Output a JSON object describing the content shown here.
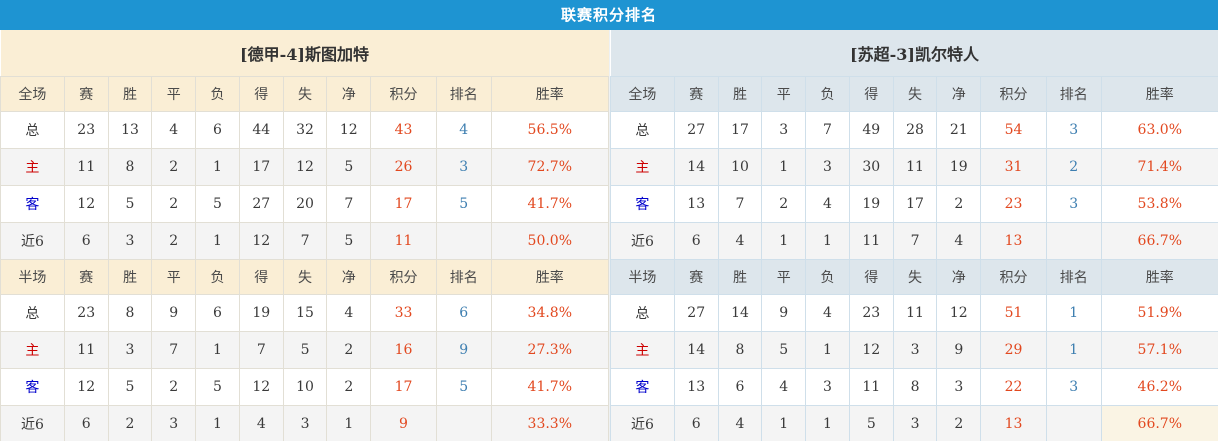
{
  "title": "联赛积分排名",
  "stat_columns": [
    "赛",
    "胜",
    "平",
    "负",
    "得",
    "失",
    "净",
    "积分",
    "排名",
    "胜率"
  ],
  "colors": {
    "header_bar": "#1e94d2",
    "left_theme": "#faeed5",
    "right_theme": "#dde6ec",
    "alt_row": "#f4f4f4",
    "text": "#3a3a3a",
    "points_text": "#e2481f",
    "rate_text": "#e2481f",
    "rank_text": "#3d7eb0",
    "home_label": "#cc0000",
    "away_label": "#0000cc",
    "highlight_cell": "#faf4e4",
    "bottom_line": "#2494d2"
  },
  "teams": [
    {
      "name": "[德甲-4]斯图加特",
      "sections": [
        {
          "key_label": "全场",
          "rows": [
            {
              "label": "总",
              "values": [
                "23",
                "13",
                "4",
                "6",
                "44",
                "32",
                "12"
              ],
              "points": "43",
              "rank": "4",
              "rate": "56.5%"
            },
            {
              "label": "主",
              "values": [
                "11",
                "8",
                "2",
                "1",
                "17",
                "12",
                "5"
              ],
              "points": "26",
              "rank": "3",
              "rate": "72.7%"
            },
            {
              "label": "客",
              "values": [
                "12",
                "5",
                "2",
                "5",
                "27",
                "20",
                "7"
              ],
              "points": "17",
              "rank": "5",
              "rate": "41.7%"
            },
            {
              "label": "近6",
              "values": [
                "6",
                "3",
                "2",
                "1",
                "12",
                "7",
                "5"
              ],
              "points": "11",
              "rank": "",
              "rate": "50.0%"
            }
          ]
        },
        {
          "key_label": "半场",
          "rows": [
            {
              "label": "总",
              "values": [
                "23",
                "8",
                "9",
                "6",
                "19",
                "15",
                "4"
              ],
              "points": "33",
              "rank": "6",
              "rate": "34.8%"
            },
            {
              "label": "主",
              "values": [
                "11",
                "3",
                "7",
                "1",
                "7",
                "5",
                "2"
              ],
              "points": "16",
              "rank": "9",
              "rate": "27.3%"
            },
            {
              "label": "客",
              "values": [
                "12",
                "5",
                "2",
                "5",
                "12",
                "10",
                "2"
              ],
              "points": "17",
              "rank": "5",
              "rate": "41.7%"
            },
            {
              "label": "近6",
              "values": [
                "6",
                "2",
                "3",
                "1",
                "4",
                "3",
                "1"
              ],
              "points": "9",
              "rank": "",
              "rate": "33.3%"
            }
          ]
        }
      ]
    },
    {
      "name": "[苏超-3]凯尔特人",
      "sections": [
        {
          "key_label": "全场",
          "rows": [
            {
              "label": "总",
              "values": [
                "27",
                "17",
                "3",
                "7",
                "49",
                "28",
                "21"
              ],
              "points": "54",
              "rank": "3",
              "rate": "63.0%"
            },
            {
              "label": "主",
              "values": [
                "14",
                "10",
                "1",
                "3",
                "30",
                "11",
                "19"
              ],
              "points": "31",
              "rank": "2",
              "rate": "71.4%"
            },
            {
              "label": "客",
              "values": [
                "13",
                "7",
                "2",
                "4",
                "19",
                "17",
                "2"
              ],
              "points": "23",
              "rank": "3",
              "rate": "53.8%"
            },
            {
              "label": "近6",
              "values": [
                "6",
                "4",
                "1",
                "1",
                "11",
                "7",
                "4"
              ],
              "points": "13",
              "rank": "",
              "rate": "66.7%"
            }
          ]
        },
        {
          "key_label": "半场",
          "rows": [
            {
              "label": "总",
              "values": [
                "27",
                "14",
                "9",
                "4",
                "23",
                "11",
                "12"
              ],
              "points": "51",
              "rank": "1",
              "rate": "51.9%"
            },
            {
              "label": "主",
              "values": [
                "14",
                "8",
                "5",
                "1",
                "12",
                "3",
                "9"
              ],
              "points": "29",
              "rank": "1",
              "rate": "57.1%"
            },
            {
              "label": "客",
              "values": [
                "13",
                "6",
                "4",
                "3",
                "11",
                "8",
                "3"
              ],
              "points": "22",
              "rank": "3",
              "rate": "46.2%"
            },
            {
              "label": "近6",
              "values": [
                "6",
                "4",
                "1",
                "1",
                "5",
                "3",
                "2"
              ],
              "points": "13",
              "rank": "",
              "rate": "66.7%",
              "rate_highlight": true
            }
          ]
        }
      ]
    }
  ]
}
